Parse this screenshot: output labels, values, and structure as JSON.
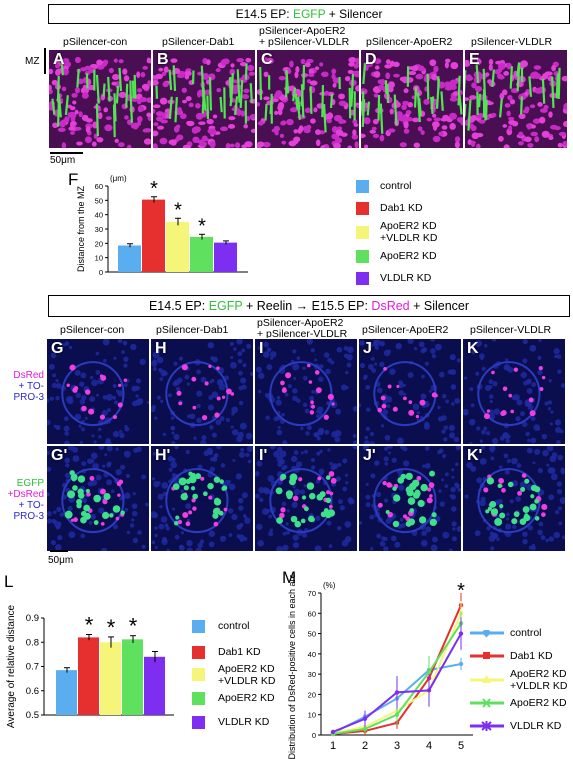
{
  "top": {
    "title_prefix": "E14.5 EP: ",
    "title_green": "EGFP",
    "title_suffix": " + Silencer",
    "mz_label": "MZ",
    "scalebar": "50μm",
    "panels": [
      {
        "letter": "A",
        "title": "pSilencer-con"
      },
      {
        "letter": "B",
        "title": "pSilencer-Dab1"
      },
      {
        "letter": "C",
        "title": "pSilencer-ApoER2\n+ pSilencer-VLDLR"
      },
      {
        "letter": "D",
        "title": "pSilencer-ApoER2"
      },
      {
        "letter": "E",
        "title": "pSilencer-VLDLR"
      }
    ]
  },
  "panel_F": {
    "letter": "F"
  },
  "middle": {
    "title_prefix": "E14.5 EP: ",
    "title_green": "EGFP",
    "title_mid": " + Reelin → E15.5 EP: ",
    "title_magenta": "DsRed",
    "title_suffix": " + Silencer",
    "scalebar": "50μm",
    "panels": [
      {
        "letter": "G",
        "letter2": "G'",
        "title": "pSilencer-con"
      },
      {
        "letter": "H",
        "letter2": "H'",
        "title": "pSilencer-Dab1"
      },
      {
        "letter": "I",
        "letter2": "I'",
        "title": "pSilencer-ApoER2\n+ pSilencer-VLDLR"
      },
      {
        "letter": "J",
        "letter2": "J'",
        "title": "pSilencer-ApoER2"
      },
      {
        "letter": "K",
        "letter2": "K'",
        "title": "pSilencer-VLDLR"
      }
    ],
    "row1_label": {
      "magenta": "DsRed",
      "blue": "+ TO-\nPRO-3"
    },
    "row2_label": {
      "green": "EGFP",
      "magenta": "+DsRed",
      "blue": "+ TO-\nPRO-3"
    }
  },
  "panel_L": {
    "letter": "L"
  },
  "panel_M": {
    "letter": "M"
  },
  "legend": [
    {
      "label": "control",
      "color": "#5aaef0"
    },
    {
      "label": "Dab1 KD",
      "color": "#e63030"
    },
    {
      "label": "ApoER2 KD\n+VLDLR KD",
      "color": "#f5f57a"
    },
    {
      "label": "ApoER2 KD",
      "color": "#5fe05f"
    },
    {
      "label": "VLDLR KD",
      "color": "#7d2ef0"
    }
  ],
  "chart_data": [
    {
      "type": "bar",
      "panel": "F",
      "categories": [
        "control",
        "Dab1 KD",
        "ApoER2 KD +VLDLR KD",
        "ApoER2 KD",
        "VLDLR KD"
      ],
      "values": [
        18.5,
        50.5,
        35,
        24.5,
        20.5
      ],
      "errors": [
        1.2,
        2,
        2.5,
        1.8,
        1.2
      ],
      "significant": [
        false,
        true,
        true,
        true,
        false
      ],
      "ylabel": "Distance from the MZ",
      "yunit": "(μm)",
      "ylim": [
        0,
        60
      ],
      "yticks": [
        0,
        10,
        20,
        30,
        40,
        50,
        60
      ]
    },
    {
      "type": "bar",
      "panel": "L",
      "categories": [
        "control",
        "Dab1 KD",
        "ApoER2 KD +VLDLR KD",
        "ApoER2 KD",
        "VLDLR KD"
      ],
      "values": [
        0.685,
        0.82,
        0.8,
        0.812,
        0.74
      ],
      "errors": [
        0.01,
        0.012,
        0.022,
        0.015,
        0.022
      ],
      "significant": [
        false,
        true,
        true,
        true,
        false
      ],
      "ylabel": "Average of relative distance",
      "ylim": [
        0.5,
        0.9
      ],
      "yticks": [
        0.5,
        0.6,
        0.7,
        0.8,
        0.9
      ]
    },
    {
      "type": "line",
      "panel": "M",
      "x": [
        1,
        2,
        3,
        4,
        5
      ],
      "xlabel": "(Area)",
      "ylabel": "Distribution of DsRed-positive cells in each area",
      "yunit": "(%)",
      "ylim": [
        0,
        70
      ],
      "yticks": [
        0,
        10,
        20,
        30,
        40,
        50,
        60,
        70
      ],
      "significant_x": 5,
      "series": [
        {
          "name": "control",
          "values": [
            1,
            9,
            18,
            32,
            35
          ],
          "errors": [
            1,
            3,
            6,
            6,
            3
          ]
        },
        {
          "name": "Dab1 KD",
          "values": [
            0.5,
            2,
            6,
            28,
            64
          ],
          "errors": [
            0.5,
            2,
            3,
            8,
            6
          ]
        },
        {
          "name": "ApoER2 KD +VLDLR KD",
          "values": [
            1,
            4,
            12,
            22,
            60
          ],
          "errors": [
            1,
            3,
            5,
            8,
            6
          ]
        },
        {
          "name": "ApoER2 KD",
          "values": [
            0.5,
            3,
            10,
            31,
            55
          ],
          "errors": [
            0.5,
            2,
            5,
            8,
            6
          ]
        },
        {
          "name": "VLDLR KD",
          "values": [
            1.5,
            8,
            21,
            22,
            50
          ],
          "errors": [
            1,
            4,
            8,
            8,
            8
          ]
        }
      ]
    }
  ]
}
